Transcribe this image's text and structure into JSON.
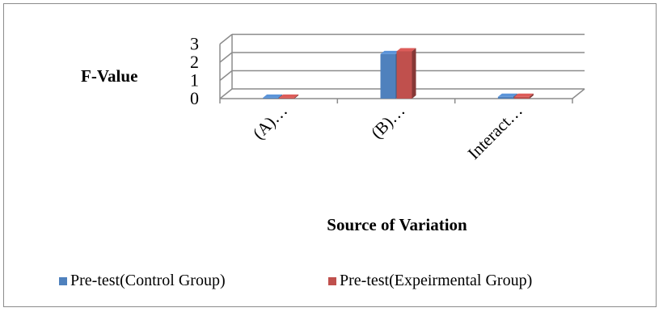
{
  "chart_data": {
    "type": "bar",
    "title": "",
    "ylabel": "F-Value",
    "xlabel": "Source of Variation",
    "categories": [
      "(A)…",
      "(B)…",
      "Interact…"
    ],
    "ylim": [
      0,
      3
    ],
    "yticks": [
      "0",
      "1",
      "2",
      "3"
    ],
    "grid": true,
    "legend": "bottom",
    "series": [
      {
        "name": "Pre-test(Control Group)",
        "color": "#4f81bd",
        "values": [
          0.05,
          2.45,
          0.1
        ]
      },
      {
        "name": "Pre-test(Expeirmental Group)",
        "color": "#c0504d",
        "values": [
          0.05,
          2.6,
          0.1
        ]
      }
    ]
  }
}
